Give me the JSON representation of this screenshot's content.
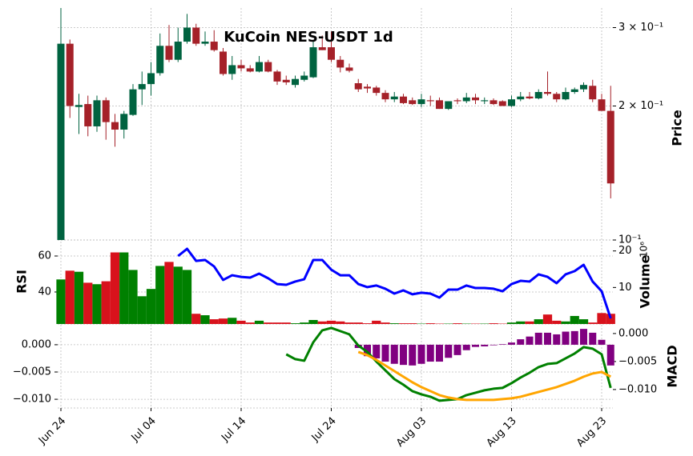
{
  "chart_data": [
    {
      "type": "candlestick",
      "title": "KuCoin NES-USDT 1d",
      "ylabel": "Price",
      "log_scale": true,
      "grid": true,
      "ylim": [
        0.1,
        0.332
      ],
      "yticks": [
        {
          "value": 0.3,
          "label": "3 × 10⁻¹"
        },
        {
          "value": 0.2,
          "label": "2 × 10⁻¹"
        },
        {
          "value": 0.1,
          "label": "10⁻¹"
        }
      ],
      "x": [
        "Jun 24",
        "Jun 25",
        "Jun 26",
        "Jun 27",
        "Jun 28",
        "Jun 29",
        "Jun 30",
        "Jul 01",
        "Jul 02",
        "Jul 03",
        "Jul 04",
        "Jul 05",
        "Jul 06",
        "Jul 07",
        "Jul 08",
        "Jul 09",
        "Jul 10",
        "Jul 11",
        "Jul 12",
        "Jul 13",
        "Jul 14",
        "Jul 15",
        "Jul 16",
        "Jul 17",
        "Jul 18",
        "Jul 19",
        "Jul 20",
        "Jul 21",
        "Jul 22",
        "Jul 23",
        "Jul 24",
        "Jul 25",
        "Jul 26",
        "Jul 27",
        "Jul 28",
        "Jul 29",
        "Jul 30",
        "Jul 31",
        "Aug 01",
        "Aug 02",
        "Aug 03",
        "Aug 04",
        "Aug 05",
        "Aug 06",
        "Aug 07",
        "Aug 08",
        "Aug 09",
        "Aug 10",
        "Aug 11",
        "Aug 12",
        "Aug 13",
        "Aug 14",
        "Aug 15",
        "Aug 16",
        "Aug 17",
        "Aug 18",
        "Aug 19",
        "Aug 20",
        "Aug 21",
        "Aug 22",
        "Aug 23",
        "Aug 24"
      ],
      "xticks": [
        "Jun 24",
        "Jul 04",
        "Jul 14",
        "Jul 24",
        "Aug 03",
        "Aug 13",
        "Aug 23"
      ],
      "up_color": "#006340",
      "down_color": "#a52129",
      "open": [
        0.1,
        0.276,
        0.199,
        0.202,
        0.18,
        0.206,
        0.184,
        0.177,
        0.191,
        0.218,
        0.224,
        0.237,
        0.273,
        0.254,
        0.279,
        0.3,
        0.276,
        0.279,
        0.265,
        0.236,
        0.247,
        0.243,
        0.239,
        0.251,
        0.239,
        0.229,
        0.223,
        0.229,
        0.232,
        0.271,
        0.271,
        0.254,
        0.244,
        0.225,
        0.221,
        0.22,
        0.214,
        0.207,
        0.21,
        0.206,
        0.202,
        0.206,
        0.206,
        0.197,
        0.206,
        0.205,
        0.209,
        0.205,
        0.206,
        0.205,
        0.2,
        0.207,
        0.21,
        0.208,
        0.215,
        0.213,
        0.207,
        0.215,
        0.218,
        0.222,
        0.207,
        0.195
      ],
      "high": [
        0.332,
        0.282,
        0.213,
        0.211,
        0.211,
        0.209,
        0.192,
        0.195,
        0.224,
        0.239,
        0.251,
        0.291,
        0.304,
        0.3,
        0.322,
        0.306,
        0.294,
        0.296,
        0.27,
        0.259,
        0.254,
        0.247,
        0.259,
        0.254,
        0.241,
        0.234,
        0.234,
        0.239,
        0.28,
        0.288,
        0.294,
        0.259,
        0.249,
        0.23,
        0.224,
        0.222,
        0.217,
        0.215,
        0.213,
        0.209,
        0.213,
        0.211,
        0.209,
        0.205,
        0.208,
        0.214,
        0.213,
        0.209,
        0.208,
        0.206,
        0.211,
        0.215,
        0.215,
        0.218,
        0.239,
        0.215,
        0.22,
        0.22,
        0.226,
        0.229,
        0.213,
        0.222
      ],
      "low": [
        0.1,
        0.188,
        0.173,
        0.171,
        0.175,
        0.168,
        0.162,
        0.169,
        0.19,
        0.201,
        0.211,
        0.234,
        0.251,
        0.251,
        0.276,
        0.273,
        0.273,
        0.265,
        0.234,
        0.229,
        0.239,
        0.238,
        0.238,
        0.238,
        0.223,
        0.223,
        0.22,
        0.227,
        0.231,
        0.267,
        0.251,
        0.238,
        0.238,
        0.215,
        0.214,
        0.211,
        0.204,
        0.204,
        0.202,
        0.201,
        0.199,
        0.2,
        0.197,
        0.196,
        0.202,
        0.203,
        0.202,
        0.202,
        0.201,
        0.2,
        0.199,
        0.205,
        0.207,
        0.207,
        0.211,
        0.204,
        0.206,
        0.213,
        0.215,
        0.204,
        0.195,
        0.124
      ],
      "close": [
        0.276,
        0.2,
        0.201,
        0.18,
        0.206,
        0.184,
        0.177,
        0.192,
        0.218,
        0.224,
        0.237,
        0.273,
        0.254,
        0.279,
        0.3,
        0.276,
        0.279,
        0.267,
        0.236,
        0.247,
        0.243,
        0.239,
        0.251,
        0.239,
        0.227,
        0.226,
        0.23,
        0.234,
        0.271,
        0.267,
        0.254,
        0.244,
        0.24,
        0.218,
        0.219,
        0.214,
        0.207,
        0.21,
        0.203,
        0.202,
        0.207,
        0.205,
        0.197,
        0.205,
        0.205,
        0.209,
        0.206,
        0.206,
        0.202,
        0.2,
        0.207,
        0.21,
        0.208,
        0.215,
        0.213,
        0.207,
        0.215,
        0.218,
        0.223,
        0.207,
        0.195,
        0.134
      ]
    },
    {
      "type": "bar",
      "ylabel": "RSI",
      "y2label": "Volume",
      "y2_offset_label": "10⁶",
      "grid": true,
      "ylim": [
        22.2,
        68.9
      ],
      "yticks": [
        40,
        60
      ],
      "y2lim": [
        0,
        23
      ],
      "y2ticks": [
        10,
        20
      ],
      "series": [
        {
          "type": "bar",
          "axis": "y2",
          "up_color": "#008000",
          "down_color": "#d8121c",
          "values": [
            12.2,
            14.6,
            14.3,
            11.3,
            10.9,
            11.7,
            19.6,
            19.6,
            14.8,
            7.6,
            9.6,
            15.9,
            17.0,
            15.7,
            14.8,
            2.8,
            2.4,
            1.3,
            1.5,
            1.7,
            0.9,
            0.4,
            0.9,
            0.4,
            0.4,
            0.4,
            0.2,
            0.4,
            1.1,
            0.7,
            0.9,
            0.7,
            0.4,
            0.4,
            0.2,
            0.9,
            0.4,
            0.2,
            0.2,
            0.2,
            0.1,
            0.2,
            0.1,
            0.1,
            0.2,
            0.1,
            0.1,
            0.1,
            0.2,
            0.1,
            0.4,
            0.7,
            0.7,
            1.3,
            2.6,
            0.9,
            0.7,
            2.2,
            1.3,
            0.4,
            3.0,
            2.8
          ]
        },
        {
          "type": "line",
          "color": "#0000ff",
          "values": [
            null,
            null,
            null,
            null,
            null,
            null,
            null,
            null,
            null,
            null,
            null,
            null,
            null,
            60,
            64,
            57.3,
            57.8,
            54.2,
            46.7,
            49.3,
            48.4,
            48,
            50.2,
            47.6,
            44.4,
            44,
            45.8,
            47.1,
            57.8,
            57.8,
            52.4,
            49.3,
            49.3,
            44.4,
            42.7,
            43.6,
            41.8,
            39.1,
            40.9,
            38.7,
            39.6,
            39.1,
            36.9,
            41.3,
            41.3,
            43.6,
            42.2,
            42.2,
            41.8,
            40.4,
            44.4,
            46.2,
            45.8,
            49.8,
            48.4,
            44.9,
            49.8,
            51.6,
            55.1,
            45.8,
            40.4,
            25.3
          ]
        }
      ]
    },
    {
      "type": "bar",
      "ylabel": "MACD",
      "grid": true,
      "ylim": [
        -0.0116,
        0.0038
      ],
      "yticks": [
        {
          "value": 0,
          "label": "0.000"
        },
        {
          "value": -0.005,
          "label": "−0.005"
        },
        {
          "value": -0.01,
          "label": "−0.010"
        }
      ],
      "y2lim": [
        -0.0133,
        0.0017
      ],
      "y2ticks": [
        {
          "value": 0,
          "label": "0.000"
        },
        {
          "value": -0.005,
          "label": "−0.005"
        },
        {
          "value": -0.01,
          "label": "−0.010"
        }
      ],
      "series": [
        {
          "type": "bar",
          "color": "#800080",
          "values": [
            null,
            null,
            null,
            null,
            null,
            null,
            null,
            null,
            null,
            null,
            null,
            null,
            null,
            null,
            null,
            null,
            null,
            null,
            null,
            null,
            null,
            null,
            null,
            null,
            null,
            null,
            null,
            null,
            null,
            null,
            null,
            null,
            null,
            -0.0006,
            -0.0021,
            -0.0025,
            -0.0031,
            -0.0035,
            -0.0037,
            -0.0038,
            -0.0035,
            -0.0031,
            -0.0031,
            -0.0024,
            -0.0019,
            -0.001,
            -0.0004,
            -0.0003,
            -0.0001,
            0.0001,
            0.0004,
            0.001,
            0.0015,
            0.0022,
            0.0022,
            0.0019,
            0.0024,
            0.0025,
            0.0029,
            0.0022,
            0.0009,
            -0.0038
          ]
        },
        {
          "type": "line",
          "axis": "y2",
          "color": "#008000",
          "values": [
            null,
            null,
            null,
            null,
            null,
            null,
            null,
            null,
            null,
            null,
            null,
            null,
            null,
            null,
            null,
            null,
            null,
            null,
            null,
            null,
            null,
            null,
            null,
            null,
            null,
            -0.00371,
            -0.00457,
            -0.00486,
            -0.00157,
            0.00057,
            0.001,
            0.00043,
            -0.00014,
            -0.00214,
            -0.00329,
            -0.005,
            -0.00657,
            -0.00814,
            -0.00914,
            -0.01029,
            -0.01086,
            -0.01129,
            -0.012,
            -0.01186,
            -0.01171,
            -0.011,
            -0.01057,
            -0.01014,
            -0.00986,
            -0.00971,
            -0.00886,
            -0.00786,
            -0.007,
            -0.006,
            -0.00543,
            -0.00529,
            -0.00443,
            -0.00357,
            -0.00243,
            -0.00271,
            -0.00371,
            -0.00971
          ]
        },
        {
          "type": "line",
          "axis": "y2",
          "color": "#ffa500",
          "values": [
            null,
            null,
            null,
            null,
            null,
            null,
            null,
            null,
            null,
            null,
            null,
            null,
            null,
            null,
            null,
            null,
            null,
            null,
            null,
            null,
            null,
            null,
            null,
            null,
            null,
            null,
            null,
            null,
            null,
            null,
            null,
            null,
            null,
            -0.00329,
            -0.00386,
            -0.00471,
            -0.00571,
            -0.00671,
            -0.00771,
            -0.00871,
            -0.00957,
            -0.01029,
            -0.011,
            -0.01143,
            -0.01171,
            -0.01186,
            -0.01186,
            -0.01186,
            -0.01186,
            -0.01171,
            -0.01157,
            -0.01129,
            -0.01086,
            -0.01043,
            -0.01,
            -0.00957,
            -0.009,
            -0.00843,
            -0.00771,
            -0.00714,
            -0.00686,
            -0.00771
          ]
        }
      ]
    }
  ]
}
